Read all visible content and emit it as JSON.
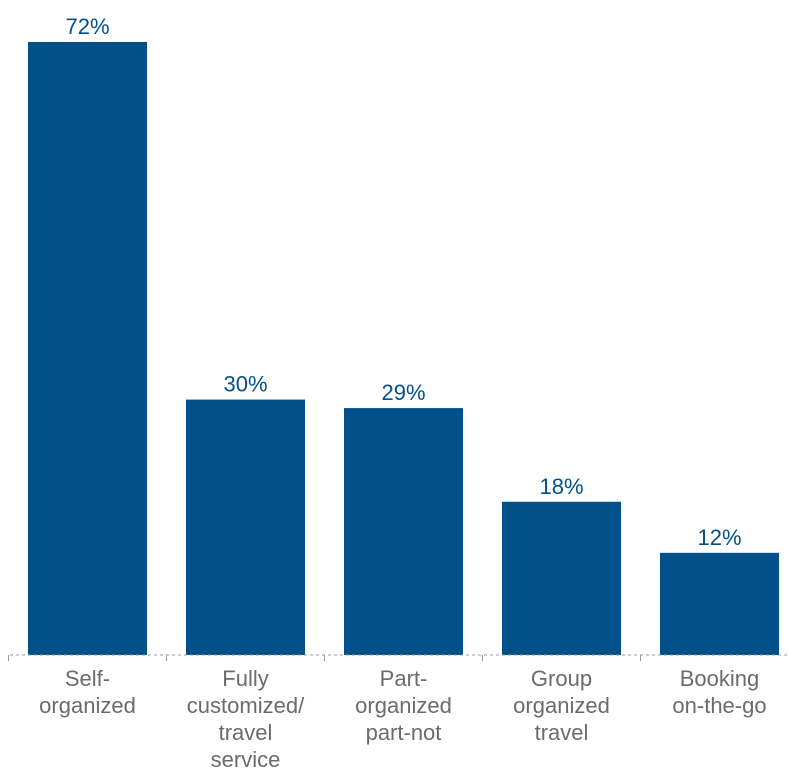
{
  "colors": {
    "bar": "#02508a",
    "value_text": "#02508a",
    "category_text": "#6b6b6b",
    "axis": "#9a9a9a"
  },
  "chart_data": {
    "type": "bar",
    "categories": [
      [
        "Self-",
        "organized"
      ],
      [
        "Fully",
        "customized/",
        "travel",
        "service"
      ],
      [
        "Part-",
        "organized",
        "part-not"
      ],
      [
        "Group",
        "organized",
        "travel"
      ],
      [
        "Booking",
        "on-the-go"
      ]
    ],
    "values": [
      72,
      30,
      29,
      18,
      12
    ],
    "value_labels": [
      "72%",
      "30%",
      "29%",
      "18%",
      "12%"
    ],
    "ylim": [
      0,
      72
    ],
    "grid": false,
    "legend": false
  }
}
